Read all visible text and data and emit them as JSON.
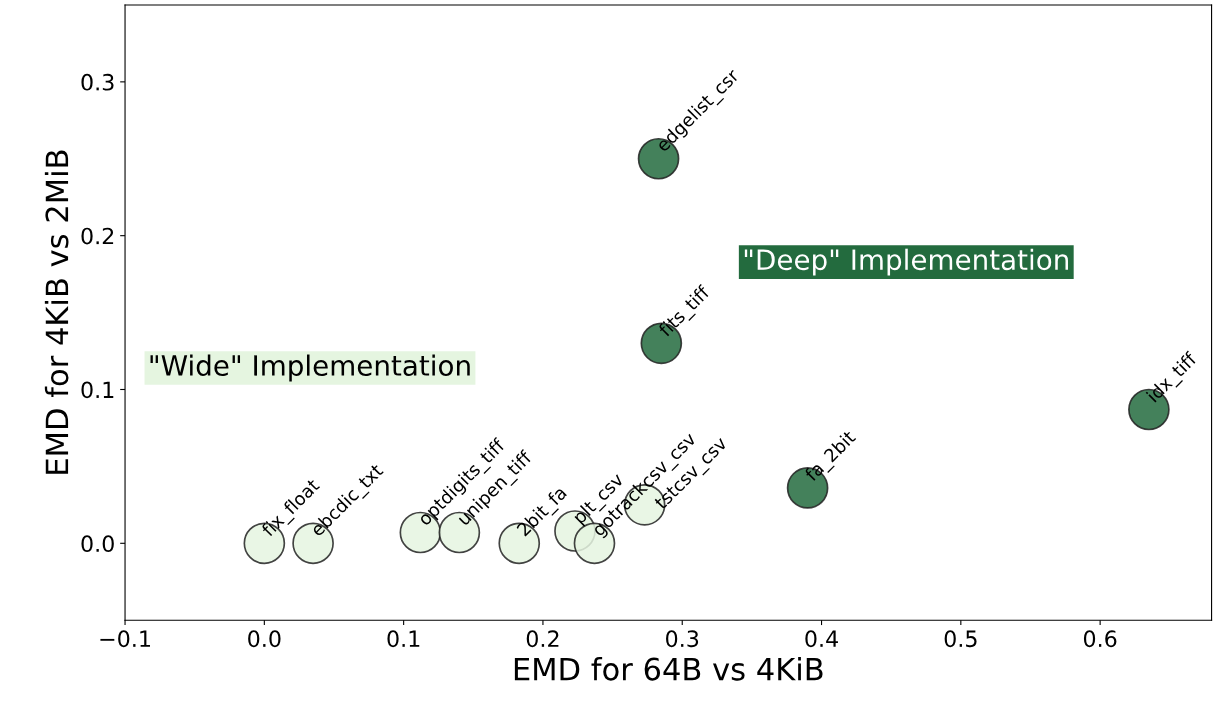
{
  "chart_data": {
    "type": "scatter",
    "xlabel": "EMD for 64B vs 4KiB",
    "ylabel": "EMD for 4KiB vs 2MiB",
    "xlim": [
      -0.1,
      0.68
    ],
    "ylim": [
      -0.05,
      0.35
    ],
    "xticks": [
      {
        "value": -0.1,
        "label": "−0.1"
      },
      {
        "value": 0.0,
        "label": "0.0"
      },
      {
        "value": 0.1,
        "label": "0.1"
      },
      {
        "value": 0.2,
        "label": "0.2"
      },
      {
        "value": 0.3,
        "label": "0.3"
      },
      {
        "value": 0.4,
        "label": "0.4"
      },
      {
        "value": 0.5,
        "label": "0.5"
      },
      {
        "value": 0.6,
        "label": "0.6"
      }
    ],
    "yticks": [
      {
        "value": 0.0,
        "label": "0.0"
      },
      {
        "value": 0.1,
        "label": "0.1"
      },
      {
        "value": 0.2,
        "label": "0.2"
      },
      {
        "value": 0.3,
        "label": "0.3"
      }
    ],
    "grid": false,
    "marker": "circle",
    "series": [
      {
        "name": "\"Wide\" Implementation",
        "color": "#e5f5e0",
        "x": [
          0.0,
          0.035,
          0.112,
          0.14,
          0.183,
          0.223,
          0.237,
          0.273
        ],
        "values": [
          0.0,
          0.0,
          0.007,
          0.007,
          0.0,
          0.008,
          0.0,
          0.025
        ]
      },
      {
        "name": "\"Deep\" Implementation",
        "color": "#236b3e",
        "x": [
          0.283,
          0.285,
          0.39,
          0.635
        ],
        "values": [
          0.25,
          0.13,
          0.036,
          0.087
        ]
      }
    ],
    "annotations": [
      {
        "text": "fix_float",
        "x": 0.0,
        "y": 0.0
      },
      {
        "text": "ebcdic_txt",
        "x": 0.035,
        "y": 0.0
      },
      {
        "text": "optdigits_tiff",
        "x": 0.112,
        "y": 0.007
      },
      {
        "text": "unipen_tiff",
        "x": 0.14,
        "y": 0.007
      },
      {
        "text": "2bit_fa",
        "x": 0.183,
        "y": 0.0
      },
      {
        "text": "plt_csv",
        "x": 0.223,
        "y": 0.008
      },
      {
        "text": "gotrackcsv_csv",
        "x": 0.237,
        "y": 0.0
      },
      {
        "text": "tstcsv_csv",
        "x": 0.273,
        "y": 0.025
      },
      {
        "text": "edgelist_csr",
        "x": 0.283,
        "y": 0.25
      },
      {
        "text": "fits_tiff",
        "x": 0.285,
        "y": 0.13
      },
      {
        "text": "fa_2bit",
        "x": 0.39,
        "y": 0.036
      },
      {
        "text": "idx_tiff",
        "x": 0.635,
        "y": 0.087
      }
    ]
  }
}
